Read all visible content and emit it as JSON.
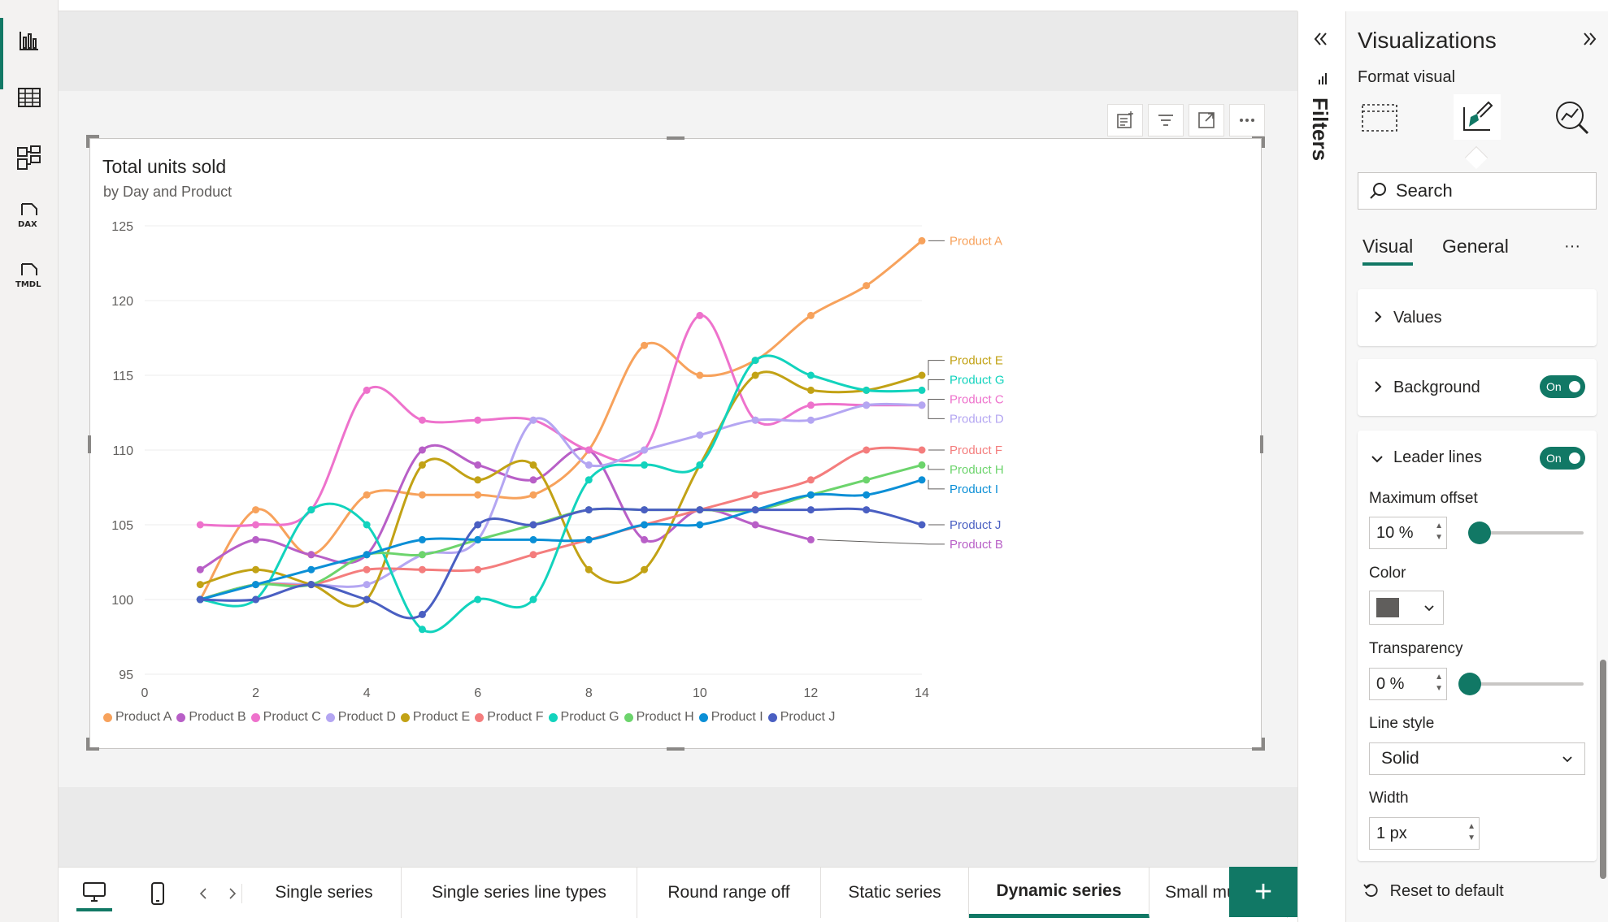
{
  "left_rail": {
    "icons": [
      "report-view-icon",
      "table-view-icon",
      "model-view-icon",
      "dax-query-icon",
      "tmdl-view-icon"
    ],
    "dax_label": "DAX",
    "tmdl_label": "TMDL"
  },
  "visual": {
    "title": "Total units sold",
    "subtitle": "by Day and Product"
  },
  "chart_data": {
    "type": "line",
    "title": "Total units sold",
    "subtitle": "by Day and Product",
    "xlabel": "",
    "ylabel": "",
    "xlim": [
      0,
      14
    ],
    "ylim": [
      95,
      125
    ],
    "x_ticks": [
      0,
      2,
      4,
      6,
      8,
      10,
      12,
      14
    ],
    "y_ticks": [
      95,
      100,
      105,
      110,
      115,
      120,
      125
    ],
    "x": [
      1,
      2,
      3,
      4,
      5,
      6,
      7,
      8,
      9,
      10,
      11,
      12,
      13,
      14
    ],
    "grid": true,
    "legend": "bottom",
    "series": [
      {
        "name": "Product A",
        "color": "#f7a25c",
        "values": [
          100,
          106,
          103,
          107,
          107,
          107,
          107,
          110,
          117,
          115,
          116,
          119,
          121,
          124
        ]
      },
      {
        "name": "Product B",
        "color": "#b85fc7",
        "values": [
          102,
          104,
          103,
          103,
          110,
          109,
          108,
          110,
          104,
          106,
          105,
          104,
          null,
          null
        ]
      },
      {
        "name": "Product C",
        "color": "#ee72cc",
        "values": [
          105,
          105,
          106,
          114,
          112,
          112,
          112,
          110,
          110,
          119,
          112,
          113,
          113,
          113
        ]
      },
      {
        "name": "Product D",
        "color": "#b4a6f2",
        "values": [
          100,
          101,
          101,
          101,
          103,
          104,
          112,
          109,
          110,
          111,
          112,
          112,
          113,
          113
        ]
      },
      {
        "name": "Product E",
        "color": "#c2a215",
        "values": [
          101,
          102,
          101,
          100,
          109,
          108,
          109,
          102,
          102,
          109,
          115,
          114,
          114,
          115
        ]
      },
      {
        "name": "Product F",
        "color": "#f47d7d",
        "values": [
          100,
          101,
          101,
          102,
          102,
          102,
          103,
          104,
          105,
          106,
          107,
          108,
          110,
          110
        ]
      },
      {
        "name": "Product G",
        "color": "#12d3bd",
        "values": [
          100,
          100,
          106,
          105,
          98,
          100,
          100,
          108,
          109,
          109,
          116,
          115,
          114,
          114
        ]
      },
      {
        "name": "Product H",
        "color": "#6cd46c",
        "values": [
          100,
          101,
          101,
          103,
          103,
          104,
          105,
          106,
          106,
          106,
          106,
          107,
          108,
          109
        ]
      },
      {
        "name": "Product I",
        "color": "#0b8fd6",
        "values": [
          100,
          101,
          102,
          103,
          104,
          104,
          104,
          104,
          105,
          105,
          106,
          107,
          107,
          108
        ]
      },
      {
        "name": "Product J",
        "color": "#4a5fc2",
        "values": [
          100,
          100,
          101,
          100,
          99,
          105,
          105,
          106,
          106,
          106,
          106,
          106,
          106,
          105
        ]
      }
    ],
    "end_labels": [
      {
        "name": "Product A",
        "y": 124
      },
      {
        "name": "Product E",
        "y": 116
      },
      {
        "name": "Product G",
        "y": 114.7
      },
      {
        "name": "Product C",
        "y": 113.4
      },
      {
        "name": "Product D",
        "y": 112.1
      },
      {
        "name": "Product F",
        "y": 110
      },
      {
        "name": "Product H",
        "y": 108.7
      },
      {
        "name": "Product I",
        "y": 107.4
      },
      {
        "name": "Product J",
        "y": 105
      },
      {
        "name": "Product B",
        "y": 103.7
      }
    ]
  },
  "legend_items": [
    {
      "name": "Product A",
      "color": "#f7a25c"
    },
    {
      "name": "Product B",
      "color": "#b85fc7"
    },
    {
      "name": "Product C",
      "color": "#ee72cc"
    },
    {
      "name": "Product D",
      "color": "#b4a6f2"
    },
    {
      "name": "Product E",
      "color": "#c2a215"
    },
    {
      "name": "Product F",
      "color": "#f47d7d"
    },
    {
      "name": "Product G",
      "color": "#12d3bd"
    },
    {
      "name": "Product H",
      "color": "#6cd46c"
    },
    {
      "name": "Product I",
      "color": "#0b8fd6"
    },
    {
      "name": "Product J",
      "color": "#4a5fc2"
    }
  ],
  "tabs": [
    {
      "label": "Single series",
      "active": false
    },
    {
      "label": "Single series line types",
      "active": false
    },
    {
      "label": "Round range off",
      "active": false
    },
    {
      "label": "Static series",
      "active": false
    },
    {
      "label": "Dynamic series",
      "active": true
    },
    {
      "label": "Small multiple",
      "active": false
    }
  ],
  "add_tab_label": "+",
  "filters": {
    "label": "Filters"
  },
  "viz_pane": {
    "title": "Visualizations",
    "subtitle": "Format visual",
    "search_label": "Search",
    "subtabs": [
      "Visual",
      "General"
    ],
    "more": "···",
    "sections": {
      "values": "Values",
      "background": "Background",
      "background_toggle": "On",
      "leader_lines": "Leader lines",
      "leader_lines_toggle": "On"
    },
    "max_offset_label": "Maximum offset",
    "max_offset_value": "10 %",
    "color_label": "Color",
    "color_value": "#605e5c",
    "transparency_label": "Transparency",
    "transparency_value": "0 %",
    "line_style_label": "Line style",
    "line_style_value": "Solid",
    "width_label": "Width",
    "width_value": "1 px",
    "reset_label": "Reset to default"
  },
  "colors": {
    "accent": "#117865"
  }
}
